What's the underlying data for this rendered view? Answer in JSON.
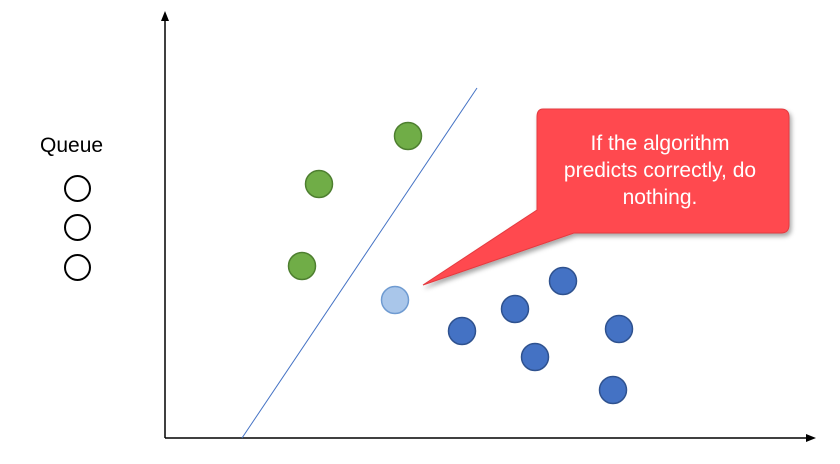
{
  "queue": {
    "title": "Queue",
    "slots": [
      "empty",
      "empty",
      "empty"
    ]
  },
  "callout": {
    "lines": [
      "If the algorithm",
      "predicts correctly, do",
      "nothing."
    ],
    "fill": "#ff4a4f",
    "stroke": "#e43a40"
  },
  "plot": {
    "axis_color": "#000000",
    "boundary_color": "#4472c4",
    "class_a": {
      "fill": "#70ad47",
      "stroke": "#4e7f30"
    },
    "class_b": {
      "fill": "#4472c4",
      "stroke": "#2f528f"
    },
    "current": {
      "fill": "#a9c6ea",
      "stroke": "#6f9bd1"
    }
  }
}
